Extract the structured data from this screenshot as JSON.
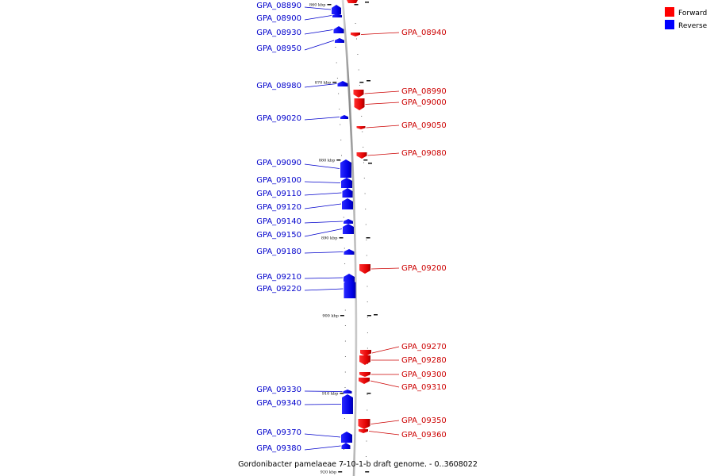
{
  "caption": "Gordonibacter pamelaeae 7-10-1-b draft genome. - 0..3608022",
  "legend": [
    {
      "label": "Forward",
      "color": "#ff0000"
    },
    {
      "label": "Reverse",
      "color": "#0000ff"
    }
  ],
  "colors": {
    "forward": "#ff0000",
    "reverse": "#0000ff",
    "axis": "#a0a0a0"
  },
  "ticks": [
    "860 kbp",
    "870 kbp",
    "880 kbp",
    "890 kbp",
    "900 kbp",
    "910 kbp",
    "920 kbp"
  ],
  "genes": {
    "reverse": [
      "GPA_08890",
      "GPA_08900",
      "GPA_08930",
      "GPA_08950",
      "GPA_08980",
      "GPA_09020",
      "GPA_09090",
      "GPA_09100",
      "GPA_09110",
      "GPA_09120",
      "GPA_09140",
      "GPA_09150",
      "GPA_09180",
      "GPA_09210",
      "GPA_09220",
      "GPA_09330",
      "GPA_09340",
      "GPA_09370",
      "GPA_09380"
    ],
    "forward": [
      "GPA_08940",
      "GPA_08990",
      "GPA_09000",
      "GPA_09050",
      "GPA_09080",
      "GPA_09200",
      "GPA_09270",
      "GPA_09280",
      "GPA_09300",
      "GPA_09310",
      "GPA_09350",
      "GPA_09360"
    ]
  }
}
